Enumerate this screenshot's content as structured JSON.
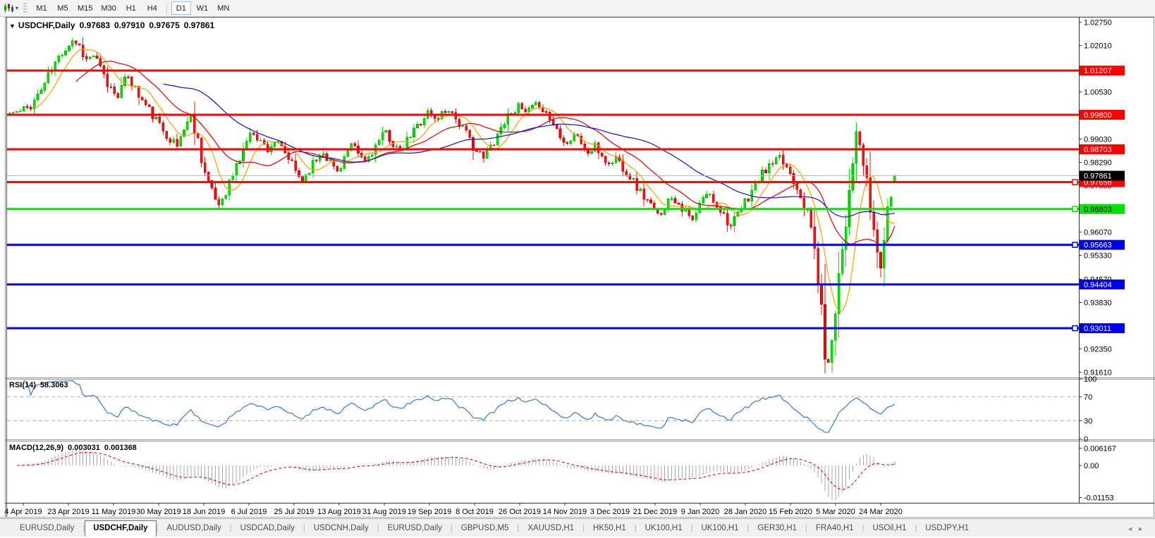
{
  "toolbar": {
    "chart_type_icon": "candlestick-chart-icon",
    "dropdown_icon": "▾",
    "timeframes": [
      "M1",
      "M5",
      "M15",
      "M30",
      "H1",
      "H4",
      "D1",
      "W1",
      "MN"
    ],
    "active_timeframe": "D1",
    "separator_before": "D1"
  },
  "chart_window": {
    "collapse_icon": "▼",
    "symbol_title": "USDCHF,Daily",
    "open": "0.97683",
    "high": "0.97910",
    "low": "0.97675",
    "close": "0.97861"
  },
  "chart_data": {
    "type": "candlestick",
    "symbol": "USDCHF",
    "timeframe": "Daily",
    "ohlc_current": {
      "open": 0.97683,
      "high": 0.9791,
      "low": 0.97675,
      "close": 0.97861
    },
    "price_axis": {
      "range_top": 1.02891,
      "range_bottom": 0.91445,
      "ticks": [
        "1.02750",
        "1.02010",
        "1.00530",
        "0.99030",
        "0.98290",
        "0.97550",
        "0.96070",
        "0.95330",
        "0.94570",
        "0.93830",
        "0.92350",
        "0.91610"
      ]
    },
    "current_price": {
      "value": 0.97861,
      "label": "0.97861",
      "line_color": "#b8b8b8",
      "label_bg": "#000000",
      "label_fg": "#ffffff"
    },
    "horizontal_levels": [
      {
        "label": "1.01207",
        "value": 1.01207,
        "color": "#fe0000",
        "text_color": "#ffffff",
        "marker": false
      },
      {
        "label": "0.99800",
        "value": 0.998,
        "color": "#fe0000",
        "text_color": "#ffffff",
        "marker": false
      },
      {
        "label": "0.98703",
        "value": 0.98703,
        "color": "#fe0000",
        "text_color": "#ffffff",
        "marker": false
      },
      {
        "label": "0.97658",
        "value": 0.97658,
        "color": "#fe0000",
        "text_color": "#ffffff",
        "marker": true
      },
      {
        "label": "0.96803",
        "value": 0.96803,
        "color": "#00e100",
        "text_color": "#000000",
        "marker": true
      },
      {
        "label": "0.95663",
        "value": 0.95663,
        "color": "#0000ee",
        "text_color": "#ffffff",
        "marker": true
      },
      {
        "label": "0.94404",
        "value": 0.94404,
        "color": "#0000ee",
        "text_color": "#ffffff",
        "marker": false
      },
      {
        "label": "0.93011",
        "value": 0.93011,
        "color": "#0000ee",
        "text_color": "#ffffff",
        "marker": true
      }
    ],
    "date_axis": {
      "labels": [
        "4 Apr 2019",
        "23 Apr 2019",
        "11 May 2019",
        "30 May 2019",
        "18 Jun 2019",
        "6 Jul 2019",
        "25 Jul 2019",
        "13 Aug 2019",
        "31 Aug 2019",
        "19 Sep 2019",
        "8 Oct 2019",
        "26 Oct 2019",
        "14 Nov 2019",
        "3 Dec 2019",
        "21 Dec 2019",
        "9 Jan 2020",
        "28 Jan 2020",
        "15 Feb 2020",
        "5 Mar 2020",
        "24 Mar 2020"
      ]
    },
    "candles": {
      "count": 255,
      "seed": 11,
      "noise": 0.0011,
      "up_fill": "#00e400",
      "up_stroke": "#00a000",
      "down_fill": "#fe1010",
      "down_stroke": "#a80000",
      "close_path": [
        [
          0,
          0.9985
        ],
        [
          3,
          0.999
        ],
        [
          6,
          1.001
        ],
        [
          9,
          1.006
        ],
        [
          12,
          1.0125
        ],
        [
          15,
          1.018
        ],
        [
          18,
          1.0218
        ],
        [
          20,
          1.02
        ],
        [
          22,
          1.0155
        ],
        [
          24,
          1.017
        ],
        [
          26,
          1.0125
        ],
        [
          28,
          1.0075
        ],
        [
          31,
          1.0045
        ],
        [
          34,
          1.0105
        ],
        [
          37,
          1.004
        ],
        [
          40,
          0.9995
        ],
        [
          43,
          0.9945
        ],
        [
          46,
          0.9905
        ],
        [
          48,
          0.988
        ],
        [
          50,
          0.994
        ],
        [
          52,
          0.9975
        ],
        [
          54,
          0.99
        ],
        [
          56,
          0.98
        ],
        [
          58,
          0.973
        ],
        [
          60,
          0.9695
        ],
        [
          62,
          0.974
        ],
        [
          64,
          0.979
        ],
        [
          66,
          0.984
        ],
        [
          68,
          0.99
        ],
        [
          70,
          0.9925
        ],
        [
          72,
          0.9895
        ],
        [
          74,
          0.987
        ],
        [
          76,
          0.9895
        ],
        [
          78,
          0.987
        ],
        [
          80,
          0.984
        ],
        [
          82,
          0.98
        ],
        [
          84,
          0.977
        ],
        [
          86,
          0.981
        ],
        [
          88,
          0.984
        ],
        [
          90,
          0.9865
        ],
        [
          92,
          0.983
        ],
        [
          94,
          0.98
        ],
        [
          96,
          0.9845
        ],
        [
          98,
          0.988
        ],
        [
          100,
          0.9855
        ],
        [
          102,
          0.983
        ],
        [
          104,
          0.9865
        ],
        [
          106,
          0.9895
        ],
        [
          108,
          0.9925
        ],
        [
          110,
          0.989
        ],
        [
          112,
          0.986
        ],
        [
          114,
          0.9895
        ],
        [
          116,
          0.993
        ],
        [
          118,
          0.996
        ],
        [
          120,
          0.999
        ],
        [
          122,
          0.9965
        ],
        [
          124,
          0.9985
        ],
        [
          126,
          1.0
        ],
        [
          128,
          0.997
        ],
        [
          130,
          0.9935
        ],
        [
          132,
          0.99
        ],
        [
          134,
          0.9865
        ],
        [
          136,
          0.984
        ],
        [
          138,
          0.988
        ],
        [
          140,
          0.992
        ],
        [
          142,
          0.996
        ],
        [
          144,
          0.999
        ],
        [
          146,
          1.0005
        ],
        [
          148,
          0.9985
        ],
        [
          150,
          1.0
        ],
        [
          152,
          1.0015
        ],
        [
          154,
          0.9985
        ],
        [
          156,
          0.995
        ],
        [
          158,
          0.992
        ],
        [
          160,
          0.989
        ],
        [
          162,
          0.992
        ],
        [
          164,
          0.989
        ],
        [
          166,
          0.9855
        ],
        [
          168,
          0.988
        ],
        [
          170,
          0.985
        ],
        [
          172,
          0.982
        ],
        [
          174,
          0.9845
        ],
        [
          176,
          0.9815
        ],
        [
          178,
          0.9785
        ],
        [
          180,
          0.975
        ],
        [
          182,
          0.972
        ],
        [
          184,
          0.969
        ],
        [
          186,
          0.966
        ],
        [
          188,
          0.969
        ],
        [
          190,
          0.972
        ],
        [
          192,
          0.97
        ],
        [
          194,
          0.967
        ],
        [
          196,
          0.964
        ],
        [
          198,
          0.969
        ],
        [
          200,
          0.973
        ],
        [
          202,
          0.971
        ],
        [
          204,
          0.968
        ],
        [
          206,
          0.9645
        ],
        [
          207,
          0.9625
        ],
        [
          209,
          0.966
        ],
        [
          211,
          0.97
        ],
        [
          213,
          0.974
        ],
        [
          215,
          0.9775
        ],
        [
          217,
          0.9805
        ],
        [
          219,
          0.9825
        ],
        [
          221,
          0.984
        ],
        [
          223,
          0.9815
        ],
        [
          225,
          0.9775
        ],
        [
          227,
          0.973
        ],
        [
          229,
          0.966
        ],
        [
          230,
          0.962
        ],
        [
          231,
          0.955
        ],
        [
          232,
          0.946
        ],
        [
          233,
          0.934
        ],
        [
          234,
          0.923
        ],
        [
          235,
          0.918
        ],
        [
          236,
          0.928
        ],
        [
          237,
          0.938
        ],
        [
          238,
          0.948
        ],
        [
          239,
          0.956
        ],
        [
          240,
          0.965
        ],
        [
          241,
          0.975
        ],
        [
          242,
          0.985
        ],
        [
          243,
          0.9915
        ],
        [
          244,
          0.988
        ],
        [
          245,
          0.982
        ],
        [
          246,
          0.975
        ],
        [
          247,
          0.968
        ],
        [
          248,
          0.961
        ],
        [
          249,
          0.954
        ],
        [
          250,
          0.95
        ],
        [
          251,
          0.958
        ],
        [
          252,
          0.966
        ],
        [
          253,
          0.973
        ],
        [
          254,
          0.9786
        ]
      ]
    },
    "moving_averages": [
      {
        "name": "fast-ma",
        "period": 8,
        "color": "#ffa000"
      },
      {
        "name": "medium-ma",
        "period": 20,
        "color": "#e00000"
      },
      {
        "name": "slow-ma",
        "period": 45,
        "color": "#1414b4"
      }
    ],
    "rsi": {
      "label": "RSI(14)",
      "current": "58.3063",
      "period": 14,
      "levels": [
        70,
        30
      ],
      "range": [
        0,
        100
      ],
      "axis_labels": [
        "100",
        "70",
        "30",
        "0"
      ],
      "color": "#3c78d2",
      "level_line_color": "#b5b5b5"
    },
    "macd": {
      "label": "MACD(12,26,9)",
      "fast": 12,
      "slow": 26,
      "signal": 9,
      "current_main": "0.003031",
      "current_signal": "0.001368",
      "axis_labels": [
        "0.006167",
        "0.00",
        "-0.01153"
      ],
      "axis_values": [
        0.006167,
        0,
        -0.01153
      ],
      "bar_color": "#a8a8a8",
      "signal_color": "#e00000"
    }
  },
  "tabs": {
    "items": [
      "EURUSD,Daily",
      "USDCHF,Daily",
      "AUDUSD,Daily",
      "USDCAD,Daily",
      "USDCNH,Daily",
      "EURUSD,Daily",
      "GBPUSD,M5",
      "XAUUSD,H1",
      "HK50,H1",
      "UK100,H1",
      "UK100,H1",
      "GER30,H1",
      "FRA40,H1",
      "USOil,H1",
      "USDJPY,H1"
    ],
    "active_index": 1,
    "scroll_left_icon": "◄",
    "scroll_right_icon": "►"
  }
}
